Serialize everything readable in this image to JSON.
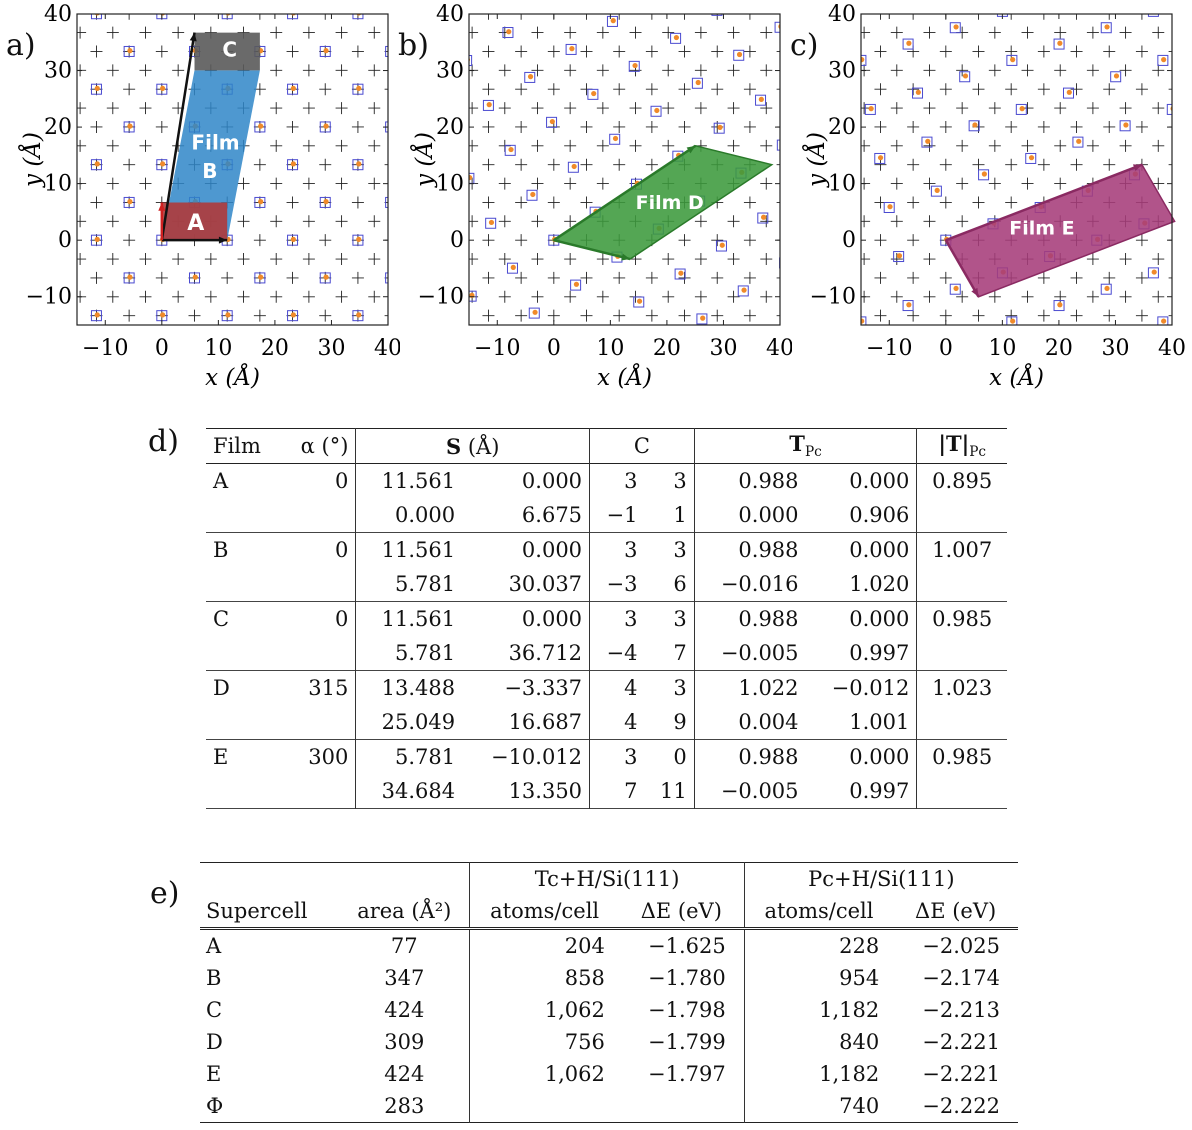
{
  "panels": {
    "a": {
      "label": "a)",
      "film_labels": [
        "A",
        "Film",
        "B",
        "C"
      ]
    },
    "b": {
      "label": "b)",
      "film_labels": [
        "Film D"
      ]
    },
    "c": {
      "label": "c)",
      "film_labels": [
        "Film E"
      ]
    }
  },
  "axes": {
    "xlabel": "x (Å)",
    "ylabel": "y (Å)",
    "xticks": [
      "−10",
      "0",
      "10",
      "20",
      "30",
      "40"
    ],
    "yticks": [
      "40",
      "30",
      "20",
      "10",
      "0",
      "−10"
    ]
  },
  "colors": {
    "film_a": "#b03a3a",
    "film_b": "#2f86c8",
    "film_c": "#5a5a5a",
    "film_d": "#3c9a3c",
    "film_e": "#a63c7a",
    "marker_dot": "#f08a2a",
    "marker_square": "#4a4ad0"
  },
  "table_d": {
    "label": "d)",
    "headers": {
      "film": "Film",
      "alpha": "α (°)",
      "S": "S (Å)",
      "C": "C",
      "T": "T",
      "T_sub": "Pc",
      "Tabs": "|T|",
      "Tabs_sub": "Pc"
    },
    "rows": [
      {
        "film": "A",
        "alpha": "0",
        "S": [
          [
            "11.561",
            "0.000"
          ],
          [
            "0.000",
            "6.675"
          ]
        ],
        "C": [
          [
            "3",
            "3"
          ],
          [
            "−1",
            "1"
          ]
        ],
        "T": [
          [
            "0.988",
            "0.000"
          ],
          [
            "0.000",
            "0.906"
          ]
        ],
        "Tabs": "0.895"
      },
      {
        "film": "B",
        "alpha": "0",
        "S": [
          [
            "11.561",
            "0.000"
          ],
          [
            "5.781",
            "30.037"
          ]
        ],
        "C": [
          [
            "3",
            "3"
          ],
          [
            "−3",
            "6"
          ]
        ],
        "T": [
          [
            "0.988",
            "0.000"
          ],
          [
            "−0.016",
            "1.020"
          ]
        ],
        "Tabs": "1.007"
      },
      {
        "film": "C",
        "alpha": "0",
        "S": [
          [
            "11.561",
            "0.000"
          ],
          [
            "5.781",
            "36.712"
          ]
        ],
        "C": [
          [
            "3",
            "3"
          ],
          [
            "−4",
            "7"
          ]
        ],
        "T": [
          [
            "0.988",
            "0.000"
          ],
          [
            "−0.005",
            "0.997"
          ]
        ],
        "Tabs": "0.985"
      },
      {
        "film": "D",
        "alpha": "315",
        "S": [
          [
            "13.488",
            "−3.337"
          ],
          [
            "25.049",
            "16.687"
          ]
        ],
        "C": [
          [
            "4",
            "3"
          ],
          [
            "4",
            "9"
          ]
        ],
        "T": [
          [
            "1.022",
            "−0.012"
          ],
          [
            "0.004",
            "1.001"
          ]
        ],
        "Tabs": "1.023"
      },
      {
        "film": "E",
        "alpha": "300",
        "S": [
          [
            "5.781",
            "−10.012"
          ],
          [
            "34.684",
            "13.350"
          ]
        ],
        "C": [
          [
            "3",
            "0"
          ],
          [
            "7",
            "11"
          ]
        ],
        "T": [
          [
            "0.988",
            "0.000"
          ],
          [
            "−0.005",
            "0.997"
          ]
        ],
        "Tabs": "0.985"
      }
    ]
  },
  "table_e": {
    "label": "e)",
    "group1": "Tc+H/Si(111)",
    "group2": "Pc+H/Si(111)",
    "headers": {
      "supercell": "Supercell",
      "area": "area (Å²)",
      "atoms1": "atoms/cell",
      "dE1": "ΔE (eV)",
      "atoms2": "atoms/cell",
      "dE2": "ΔE (eV)"
    },
    "rows": [
      {
        "supercell": "A",
        "area": "77",
        "atoms1": "204",
        "dE1": "−1.625",
        "atoms2": "228",
        "dE2": "−2.025"
      },
      {
        "supercell": "B",
        "area": "347",
        "atoms1": "858",
        "dE1": "−1.780",
        "atoms2": "954",
        "dE2": "−2.174"
      },
      {
        "supercell": "C",
        "area": "424",
        "atoms1": "1,062",
        "dE1": "−1.798",
        "atoms2": "1,182",
        "dE2": "−2.213"
      },
      {
        "supercell": "D",
        "area": "309",
        "atoms1": "756",
        "dE1": "−1.799",
        "atoms2": "840",
        "dE2": "−2.221"
      },
      {
        "supercell": "E",
        "area": "424",
        "atoms1": "1,062",
        "dE1": "−1.797",
        "atoms2": "1,182",
        "dE2": "−2.221"
      },
      {
        "supercell": "Φ",
        "area": "283",
        "atoms1": "",
        "dE1": "",
        "atoms2": "740",
        "dE2": "−2.222"
      }
    ]
  }
}
